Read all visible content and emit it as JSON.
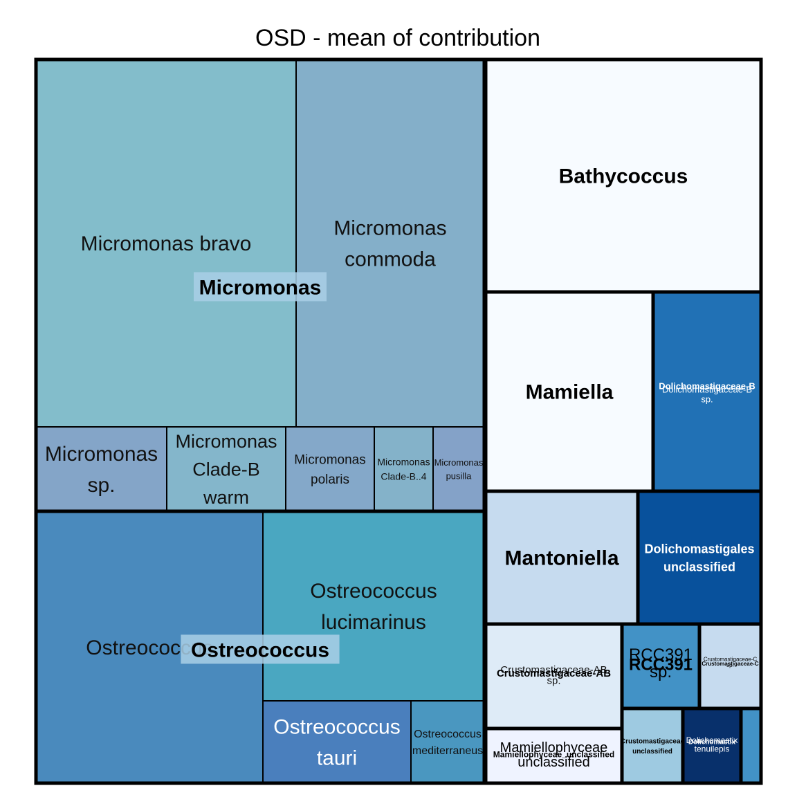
{
  "chart_data": {
    "type": "treemap",
    "title": "OSD - mean of contribution",
    "groups": [
      {
        "name": "Micromonas",
        "children": [
          {
            "name": "Micromonas bravo",
            "color": "#83bdcb"
          },
          {
            "name": "Micromonas commoda",
            "color": "#84afc9"
          },
          {
            "name": "Micromonas sp.",
            "color": "#84a5c8"
          },
          {
            "name": "Micromonas Clade-B warm",
            "color": "#84b6cb"
          },
          {
            "name": "Micromonas polaris",
            "color": "#84a8c9"
          },
          {
            "name": "Micromonas Clade-B..4",
            "color": "#84b2c9"
          },
          {
            "name": "Micromonas pusilla",
            "color": "#84a2c8"
          }
        ]
      },
      {
        "name": "Ostreococcus",
        "children": [
          {
            "name": "Ostreococcus",
            "color": "#4a8abd"
          },
          {
            "name": "Ostreococcus lucimarinus",
            "color": "#4aa7c1"
          },
          {
            "name": "Ostreococcus tauri",
            "color": "#4a7fbd"
          },
          {
            "name": "Ostreococcus mediterraneus",
            "color": "#4a97c0"
          }
        ]
      },
      {
        "name": "Bathycoccus",
        "children": [
          {
            "name": "Bathycoccus",
            "color": "#f7fbff"
          }
        ]
      },
      {
        "name": "Mamiella",
        "children": [
          {
            "name": "Mamiella",
            "color": "#f7fbff"
          }
        ]
      },
      {
        "name": "Dolichomastigaceae-B",
        "children": [
          {
            "name": "Dolichomastigaceae-B sp.",
            "color": "#2171b5"
          }
        ]
      },
      {
        "name": "Mantoniella",
        "children": [
          {
            "name": "Mantoniella",
            "color": "#c6dbef"
          }
        ]
      },
      {
        "name": "Dolichomastigales unclassified",
        "children": [
          {
            "name": "Dolichomastigales unclassified",
            "color": "#08519c"
          }
        ]
      },
      {
        "name": "Crustomastigaceae-AB",
        "children": [
          {
            "name": "Crustomastigaceae-AB sp.",
            "color": "#deebf7"
          }
        ]
      },
      {
        "name": "RCC391",
        "children": [
          {
            "name": "RCC391 sp.",
            "color": "#4292c6"
          }
        ]
      },
      {
        "name": "Crustomastigaceae-C",
        "children": [
          {
            "name": "Crustomastigaceae-C sp.",
            "color": "#c6dbef"
          }
        ]
      },
      {
        "name": "Mamiellophyceae_unclassified",
        "children": [
          {
            "name": "Mamiellophyceae unclassified",
            "color": "#eff3ff"
          }
        ]
      },
      {
        "name": "Crustomastigaceae",
        "children": [
          {
            "name": "Crustomastigaceae unclassified",
            "color": "#9ecae1"
          }
        ]
      },
      {
        "name": "Dolichomastix",
        "children": [
          {
            "name": "Dolichomastix tenuilepis",
            "color": "#08306b"
          }
        ]
      },
      {
        "name": "",
        "children": [
          {
            "name": "",
            "color": "#4292c6"
          }
        ]
      }
    ]
  }
}
